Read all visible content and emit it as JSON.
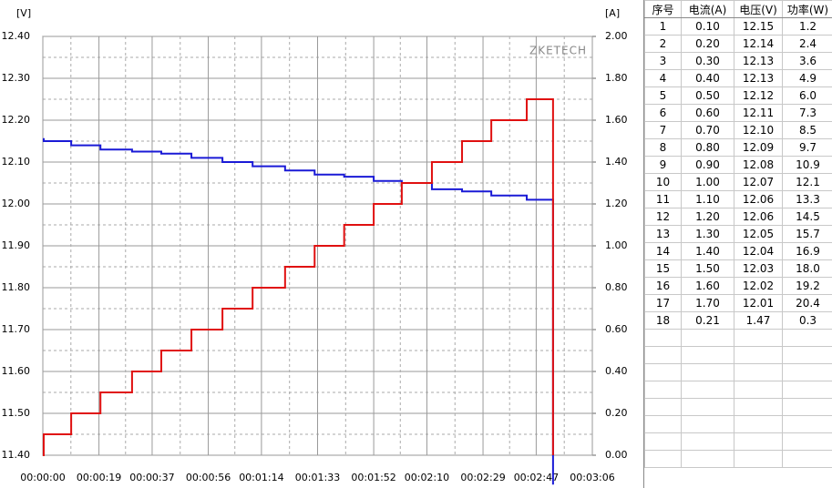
{
  "chart_data": {
    "type": "line",
    "step": true,
    "grid": true,
    "y_label": "[V]",
    "y2_label": "[A]",
    "watermark": "ZKETECH",
    "x": [
      0,
      0.3,
      9.6,
      19.5,
      30.2,
      40.1,
      50.3,
      60.8,
      71,
      82,
      92,
      102,
      112,
      121.5,
      131.7,
      141.9,
      151.8,
      163.8,
      172.7
    ],
    "xlim": [
      0,
      186
    ],
    "xticks": [
      {
        "value": 0,
        "label": "00:00:00"
      },
      {
        "value": 19,
        "label": "00:00:19"
      },
      {
        "value": 37,
        "label": "00:00:37"
      },
      {
        "value": 56,
        "label": "00:00:56"
      },
      {
        "value": 74,
        "label": "00:01:14"
      },
      {
        "value": 93,
        "label": "00:01:33"
      },
      {
        "value": 112,
        "label": "00:01:52"
      },
      {
        "value": 130,
        "label": "00:02:10"
      },
      {
        "value": 149,
        "label": "00:02:29"
      },
      {
        "value": 167,
        "label": "00:02:47"
      },
      {
        "value": 186,
        "label": "00:03:06"
      }
    ],
    "ylim": [
      11.4,
      12.4
    ],
    "yticks": [
      {
        "value": 11.4,
        "label": "11.40"
      },
      {
        "value": 11.5,
        "label": "11.50"
      },
      {
        "value": 11.6,
        "label": "11.60"
      },
      {
        "value": 11.7,
        "label": "11.70"
      },
      {
        "value": 11.8,
        "label": "11.80"
      },
      {
        "value": 11.9,
        "label": "11.90"
      },
      {
        "value": 12.0,
        "label": "12.00"
      },
      {
        "value": 12.1,
        "label": "12.10"
      },
      {
        "value": 12.2,
        "label": "12.20"
      },
      {
        "value": 12.3,
        "label": "12.30"
      },
      {
        "value": 12.4,
        "label": "12.40"
      }
    ],
    "y2lim": [
      0,
      2
    ],
    "y2ticks": [
      {
        "value": 0,
        "label": "0.00"
      },
      {
        "value": 0.2,
        "label": "0.20"
      },
      {
        "value": 0.4,
        "label": "0.40"
      },
      {
        "value": 0.6,
        "label": "0.60"
      },
      {
        "value": 0.8,
        "label": "0.80"
      },
      {
        "value": 1,
        "label": "1.00"
      },
      {
        "value": 1.2,
        "label": "1.20"
      },
      {
        "value": 1.4,
        "label": "1.40"
      },
      {
        "value": 1.6,
        "label": "1.60"
      },
      {
        "value": 1.8,
        "label": "1.80"
      },
      {
        "value": 2,
        "label": "2.00"
      }
    ],
    "series": [
      {
        "color": "#1a1ad6",
        "values": [
          12.155,
          12.15,
          12.14,
          12.13,
          12.125,
          12.12,
          12.11,
          12.1,
          12.09,
          12.08,
          12.07,
          12.065,
          12.055,
          12.05,
          12.035,
          12.03,
          12.02,
          12.01,
          11.33
        ]
      },
      {
        "color": "#e01010",
        "axis": "y2",
        "values": [
          0,
          0.1,
          0.2,
          0.3,
          0.4,
          0.5,
          0.6,
          0.7,
          0.8,
          0.9,
          1.0,
          1.1,
          1.2,
          1.3,
          1.4,
          1.5,
          1.6,
          1.7,
          0
        ]
      }
    ]
  },
  "table": {
    "header": [
      "序号",
      "电流(A)",
      "电压(V)",
      "功率(W)"
    ],
    "rows": [
      [
        "1",
        "0.10",
        "12.15",
        "1.2"
      ],
      [
        "2",
        "0.20",
        "12.14",
        "2.4"
      ],
      [
        "3",
        "0.30",
        "12.13",
        "3.6"
      ],
      [
        "4",
        "0.40",
        "12.13",
        "4.9"
      ],
      [
        "5",
        "0.50",
        "12.12",
        "6.0"
      ],
      [
        "6",
        "0.60",
        "12.11",
        "7.3"
      ],
      [
        "7",
        "0.70",
        "12.10",
        "8.5"
      ],
      [
        "8",
        "0.80",
        "12.09",
        "9.7"
      ],
      [
        "9",
        "0.90",
        "12.08",
        "10.9"
      ],
      [
        "10",
        "1.00",
        "12.07",
        "12.1"
      ],
      [
        "11",
        "1.10",
        "12.06",
        "13.3"
      ],
      [
        "12",
        "1.20",
        "12.06",
        "14.5"
      ],
      [
        "13",
        "1.30",
        "12.05",
        "15.7"
      ],
      [
        "14",
        "1.40",
        "12.04",
        "16.9"
      ],
      [
        "15",
        "1.50",
        "12.03",
        "18.0"
      ],
      [
        "16",
        "1.60",
        "12.02",
        "19.2"
      ],
      [
        "17",
        "1.70",
        "12.01",
        "20.4"
      ],
      [
        "18",
        "0.21",
        "1.47",
        "0.3"
      ]
    ]
  }
}
